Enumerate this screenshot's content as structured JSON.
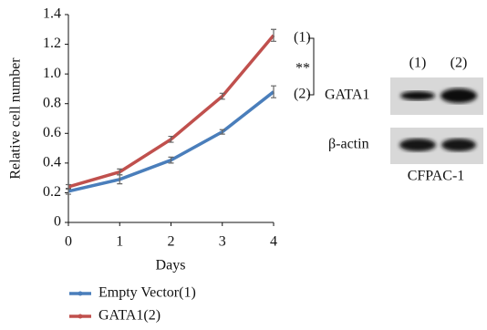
{
  "chart_data": {
    "type": "line",
    "x_label": "Days",
    "y_label": "Relative cell number",
    "x": [
      0,
      1,
      2,
      3,
      4
    ],
    "xlim": [
      0,
      4
    ],
    "xticks": [
      0,
      1,
      2,
      3,
      4
    ],
    "ylim": [
      0,
      1.4
    ],
    "yticks": [
      0,
      0.2,
      0.4,
      0.6,
      0.8,
      {
        "value": 1,
        "label": "1.0"
      },
      1.2,
      1.4
    ],
    "series": [
      {
        "name": "Empty Vector(1)",
        "color": "#4a7ebb",
        "values": [
          0.21,
          0.29,
          0.42,
          0.61,
          0.88
        ],
        "errors": [
          0.02,
          0.03,
          0.02,
          0.015,
          0.04
        ]
      },
      {
        "name": "GATA1(2)",
        "color": "#c0504d",
        "values": [
          0.24,
          0.34,
          0.56,
          0.85,
          1.26
        ],
        "errors": [
          0.015,
          0.02,
          0.02,
          0.02,
          0.04
        ]
      }
    ],
    "annotations": [
      "(1)",
      "(2)",
      "**"
    ]
  },
  "blot": {
    "lanes": [
      "(1)",
      "(2)"
    ],
    "rows": [
      "GATA1",
      "β-actin"
    ],
    "cell_line": "CFPAC-1"
  }
}
